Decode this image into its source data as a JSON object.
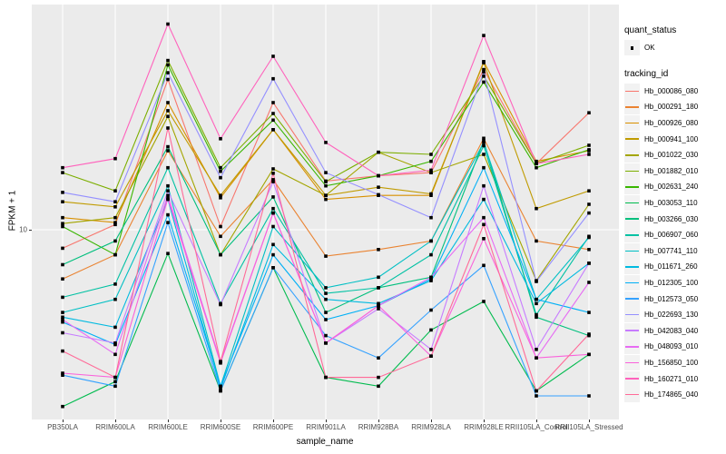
{
  "chart_data": {
    "type": "line",
    "title": "",
    "xlabel": "sample_name",
    "ylabel": "FPKM + 1",
    "y_scale": "log10",
    "y_tick_labels": [
      "10"
    ],
    "y_tick_value": 10,
    "ylim": [
      1.8,
      80
    ],
    "grid": "vertical-white-on-gray",
    "panel_background": "#EBEBEB",
    "gridline_color": "#FFFFFF",
    "point_color": "#000000",
    "legend_position": "right",
    "categories": [
      "PB350LA",
      "RRIM600LA",
      "RRIM600LE",
      "RRIM600SE",
      "RRIM600PE",
      "RRIM901LA",
      "RRIM928BA",
      "RRIM928LA",
      "RRIM928LE",
      "RRII105LA_Control",
      "RRII105LA_Stressed"
    ],
    "series": [
      {
        "name": "Hb_000086_080",
        "color": "#F8766D",
        "values": [
          8.4,
          10.5,
          41,
          10.3,
          33,
          15.8,
          16.6,
          17.1,
          45,
          18.6,
          30
        ]
      },
      {
        "name": "Hb_000291_180",
        "color": "#EA8331",
        "values": [
          6.3,
          7.9,
          21,
          9.4,
          16,
          7.8,
          8.3,
          9.0,
          23.6,
          9.0,
          8.3
        ]
      },
      {
        "name": "Hb_000926_080",
        "color": "#D89000",
        "values": [
          11.2,
          10.7,
          33,
          13.5,
          25.6,
          13.3,
          13.8,
          13.8,
          48.5,
          19,
          21
        ]
      },
      {
        "name": "Hb_000941_100",
        "color": "#C09B00",
        "values": [
          13,
          12.4,
          30.6,
          13.8,
          25.6,
          13.8,
          14.9,
          14,
          48,
          12.2,
          14.4
        ]
      },
      {
        "name": "Hb_001022_030",
        "color": "#A3A500",
        "values": [
          10.6,
          11.2,
          29,
          7.9,
          17.7,
          13.8,
          20.7,
          17.1,
          20.3,
          6.2,
          12.7
        ]
      },
      {
        "name": "Hb_001882_010",
        "color": "#7CAE00",
        "values": [
          17.1,
          14.4,
          49,
          17.9,
          29.8,
          15.7,
          20.7,
          20.3,
          42.3,
          18.6,
          22.1
        ]
      },
      {
        "name": "Hb_002631_240",
        "color": "#39B600",
        "values": [
          10.3,
          7.9,
          47,
          17.3,
          28,
          15.1,
          16.6,
          19,
          40,
          17.9,
          21.2
        ]
      },
      {
        "name": "Hb_003053_110",
        "color": "#00BB4E",
        "values": [
          1.9,
          2.4,
          8.0,
          2.2,
          7.0,
          2.5,
          2.3,
          3.9,
          5.1,
          2.2,
          3.1
        ]
      },
      {
        "name": "Hb_003266_030",
        "color": "#00BF7D",
        "values": [
          7.2,
          9.0,
          21.8,
          7.9,
          13.6,
          4.6,
          5.8,
          6.4,
          23,
          4.4,
          3.7
        ]
      },
      {
        "name": "Hb_006907_060",
        "color": "#00C1A3",
        "values": [
          5.3,
          6.0,
          17.9,
          5.0,
          12.2,
          5.5,
          5.8,
          7.9,
          22,
          4.5,
          9.4
        ]
      },
      {
        "name": "Hb_007741_110",
        "color": "#00BFC4",
        "values": [
          4.6,
          5.2,
          15.1,
          2.3,
          10.3,
          5.8,
          6.4,
          9.0,
          22.7,
          5.2,
          9.3
        ]
      },
      {
        "name": "Hb_011671_260",
        "color": "#00BAE0",
        "values": [
          4.4,
          4.0,
          13.3,
          2.25,
          8.7,
          5.2,
          5.0,
          6.2,
          13.3,
          5.0,
          7.3
        ]
      },
      {
        "name": "Hb_012305_100",
        "color": "#00B0F6",
        "values": [
          4.2,
          3.4,
          11.5,
          2.3,
          7.9,
          4.3,
          4.9,
          6.3,
          17.9,
          5.2,
          4.6
        ]
      },
      {
        "name": "Hb_012573_050",
        "color": "#35A2FF",
        "values": [
          2.55,
          2.3,
          10.7,
          2.2,
          7.0,
          3.7,
          3.0,
          4.7,
          7.15,
          2.1,
          2.1
        ]
      },
      {
        "name": "Hb_022693_130",
        "color": "#9590FF",
        "values": [
          14.2,
          13,
          43.7,
          16.3,
          41.3,
          17.1,
          13.9,
          11.2,
          44,
          6.15,
          11.7
        ]
      },
      {
        "name": "Hb_042083_040",
        "color": "#C77CFF",
        "values": [
          3.8,
          3.45,
          14.4,
          4.95,
          15.7,
          3.45,
          4.76,
          3.25,
          15.1,
          3.25,
          7.3
        ]
      },
      {
        "name": "Hb_048093_010",
        "color": "#E76BF3",
        "values": [
          4.3,
          3.1,
          13.8,
          2.9,
          11.7,
          3.45,
          4.9,
          6.4,
          11.2,
          3.0,
          6.1
        ]
      },
      {
        "name": "Hb_156850_100",
        "color": "#FA62DB",
        "values": [
          2.6,
          2.5,
          13.4,
          2.86,
          11.7,
          3.45,
          4.9,
          3.05,
          9.2,
          3.0,
          3.1
        ]
      },
      {
        "name": "Hb_160271_010",
        "color": "#FF62BC",
        "values": [
          17.9,
          19.5,
          69,
          23.5,
          51,
          22.7,
          16.6,
          17.5,
          62,
          18.6,
          20.3
        ]
      },
      {
        "name": "Hb_174865_040",
        "color": "#FF6A98",
        "values": [
          3.2,
          2.5,
          26,
          2.9,
          17,
          2.5,
          2.5,
          3.05,
          10.5,
          2.2,
          3.75
        ]
      }
    ]
  },
  "legend": {
    "quant_status": {
      "title": "quant_status",
      "items": [
        {
          "label": "OK",
          "symbol": "black-point"
        }
      ]
    },
    "tracking_id": {
      "title": "tracking_id"
    }
  }
}
